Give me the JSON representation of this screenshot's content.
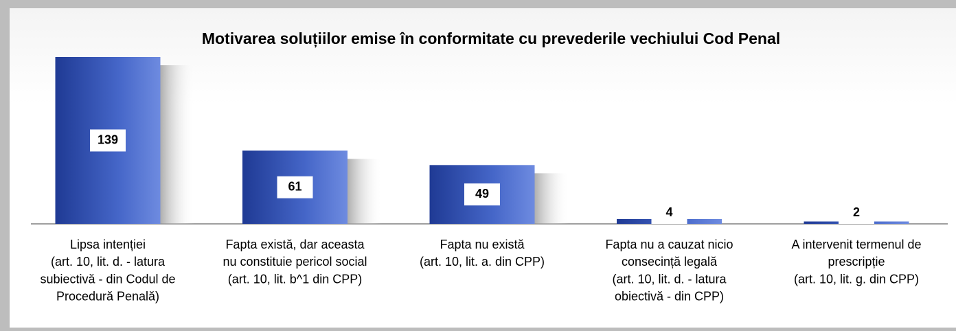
{
  "chart_data": {
    "type": "bar",
    "title": "Motivarea soluțiilor emise în conformitate cu prevederile vechiului Cod Penal",
    "categories": [
      [
        "Lipsa intenției",
        "(art. 10, lit. d.  - latura",
        "subiectivă - din Codul de",
        "Procedură Penală)"
      ],
      [
        "Fapta există, dar aceasta",
        "nu constituie pericol social",
        "(art. 10, lit. b^1 din CPP)"
      ],
      [
        "Fapta nu există",
        "(art. 10, lit. a. din CPP)"
      ],
      [
        "Fapta nu a cauzat nicio",
        "consecință legală",
        "(art. 10, lit. d.  - latura",
        "obiectivă - din CPP)"
      ],
      [
        "A intervenit termenul de",
        "prescripție",
        "(art. 10, lit. g. din CPP)"
      ]
    ],
    "values": [
      139,
      61,
      49,
      4,
      2
    ],
    "color": "#3a5bbf"
  }
}
